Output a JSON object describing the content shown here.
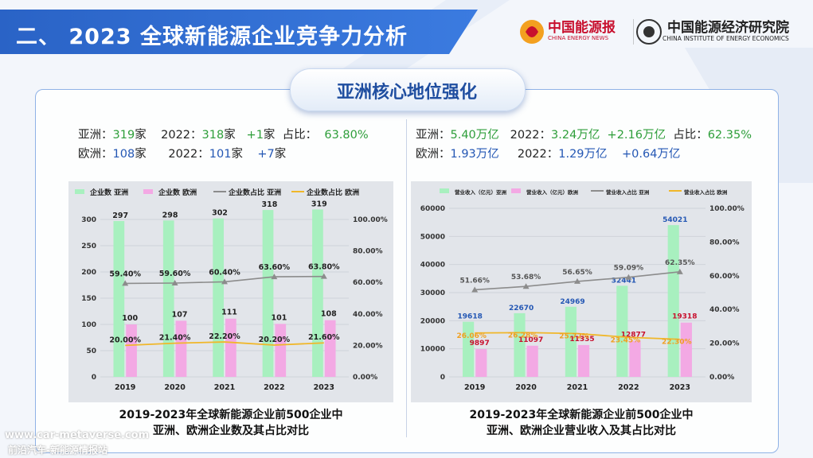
{
  "header": {
    "title": "二、 2023 全球新能源企业竞争力分析",
    "logo1_name": "中国能源报",
    "logo1_sub": "CHINA ENERGY NEWS",
    "logo2_name": "中国能源经济研究院",
    "logo2_sub": "CHINA INSTITUTE OF ENERGY ECONOMICS"
  },
  "section": {
    "pill": "亚洲核心地位强化"
  },
  "left_stats": {
    "asia_label": "亚洲：",
    "asia_count": "319",
    "asia_unit": "家",
    "asia_prev_label": "2022：",
    "asia_prev": "318",
    "asia_prev_unit": "家",
    "asia_delta": "+1",
    "asia_delta_unit": "家",
    "asia_share_label": "占比：",
    "asia_share": "63.80%",
    "eu_label": "欧洲：",
    "eu_count": "108",
    "eu_unit": "家",
    "eu_prev_label": "2022：",
    "eu_prev": "101",
    "eu_prev_unit": "家",
    "eu_delta": "+7",
    "eu_delta_unit": "家"
  },
  "right_stats": {
    "asia_label": "亚洲：",
    "asia_rev": "5.40万亿",
    "asia_prev_label": "2022：",
    "asia_prev": "3.24万亿",
    "asia_delta": "+2.16万亿",
    "asia_share_label": "占比：",
    "asia_share": "62.35%",
    "eu_label": "欧洲：",
    "eu_rev": "1.93万亿",
    "eu_prev_label": "2022：",
    "eu_prev": "1.29万亿",
    "eu_delta": "+0.64万亿"
  },
  "captions": {
    "left_line1": "2019-2023年全球新能源企业前500企业中",
    "left_line2": "亚洲、欧洲企业数及其占比对比",
    "right_line1": "2019-2023年全球新能源企业前500企业中",
    "right_line2": "亚洲、欧洲企业营业收入及其占比对比"
  },
  "watermark": {
    "line1": "www.car-metaverse.com",
    "line2": "前沿汽车-新能源情报站"
  },
  "colors": {
    "asia_bar": "#a8f0bf",
    "eu_bar": "#f3a9e4",
    "asia_line": "#8c8c8c",
    "eu_line": "#f0b72a",
    "title_bg": "#2a63c6"
  },
  "chart_data": [
    {
      "type": "bar",
      "categories": [
        "2019",
        "2020",
        "2021",
        "2022",
        "2023"
      ],
      "series": [
        {
          "name": "企业数 亚洲",
          "kind": "bar",
          "axis": "left",
          "values": [
            297,
            298,
            302,
            318,
            319
          ]
        },
        {
          "name": "企业数 欧洲",
          "kind": "bar",
          "axis": "left",
          "values": [
            100,
            107,
            111,
            101,
            108
          ]
        },
        {
          "name": "企业数占比 亚洲",
          "kind": "line",
          "axis": "right",
          "values": [
            59.4,
            59.6,
            60.4,
            63.6,
            63.8
          ]
        },
        {
          "name": "企业数占比 欧洲",
          "kind": "line",
          "axis": "right",
          "values": [
            20.0,
            21.4,
            22.2,
            20.2,
            21.6
          ]
        }
      ],
      "bar_labels_asia": [
        "297",
        "298",
        "302",
        "318",
        "319"
      ],
      "bar_labels_eu": [
        "100",
        "107",
        "111",
        "101",
        "108"
      ],
      "line_labels_asia": [
        "59.40%",
        "59.60%",
        "60.40%",
        "63.60%",
        "63.80%"
      ],
      "line_labels_eu": [
        "20.00%",
        "21.40%",
        "22.20%",
        "20.20%",
        "21.60%"
      ],
      "ylim": [
        0,
        300
      ],
      "y2lim": [
        0,
        100
      ],
      "yticks": [
        "0",
        "50",
        "100",
        "150",
        "200",
        "250",
        "300"
      ],
      "y2ticks": [
        "0.00%",
        "20.00%",
        "40.00%",
        "60.00%",
        "80.00%",
        "100.00%"
      ],
      "legend": "top"
    },
    {
      "type": "bar",
      "categories": [
        "2019",
        "2020",
        "2021",
        "2022",
        "2023"
      ],
      "series": [
        {
          "name": "营业收入（亿元）亚洲",
          "kind": "bar",
          "axis": "left",
          "values": [
            19618,
            22670,
            24969,
            32441,
            54021
          ]
        },
        {
          "name": "营业收入（亿元）欧洲",
          "kind": "bar",
          "axis": "left",
          "values": [
            9897,
            11097,
            11335,
            12877,
            19318
          ]
        },
        {
          "name": "营业收入占比 亚洲",
          "kind": "line",
          "axis": "right",
          "values": [
            51.66,
            53.68,
            56.65,
            59.09,
            62.35
          ]
        },
        {
          "name": "营业收入占比 欧洲",
          "kind": "line",
          "axis": "right",
          "values": [
            26.06,
            26.28,
            25.72,
            23.45,
            22.3
          ]
        }
      ],
      "bar_labels_asia": [
        "19618",
        "22670",
        "24969",
        "32441",
        "54021"
      ],
      "bar_labels_eu": [
        "9897",
        "11097",
        "11335",
        "12877",
        "19318"
      ],
      "line_labels_asia": [
        "51.66%",
        "53.68%",
        "56.65%",
        "59.09%",
        "62.35%"
      ],
      "line_labels_eu": [
        "26.06%",
        "26.28%",
        "25.72%",
        "23.45%",
        "22.30%"
      ],
      "ylim": [
        0,
        60000
      ],
      "y2lim": [
        0,
        100
      ],
      "yticks": [
        "0",
        "10000",
        "20000",
        "30000",
        "40000",
        "50000",
        "60000"
      ],
      "y2ticks": [
        "0.00%",
        "20.00%",
        "40.00%",
        "60.00%",
        "80.00%",
        "100.00%"
      ],
      "legend": "top"
    }
  ]
}
